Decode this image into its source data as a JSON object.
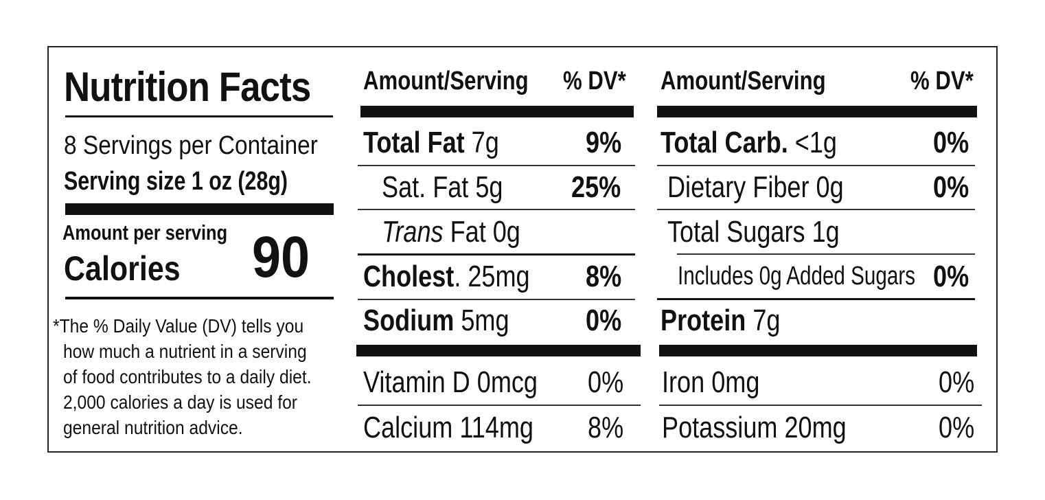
{
  "label": {
    "title": "Nutrition Facts",
    "servings_per_container": "8 Servings per Container",
    "serving_size": "Serving size 1 oz (28g)",
    "amount_per_serving": "Amount per serving",
    "calories_label": "Calories",
    "calories_value": "90",
    "footnote_lines": [
      "*The % Daily Value (DV) tells you",
      "how much a nutrient in a serving",
      "of food contributes to a daily diet.",
      "2,000 calories a day is used for",
      "general nutrition advice."
    ]
  },
  "col1": {
    "header_amount": "Amount/Serving",
    "header_dv": "% DV*",
    "total_fat": {
      "name": "Total Fat",
      "amount": "7g",
      "dv": "9%"
    },
    "sat_fat": {
      "name": "Sat. Fat 5g",
      "dv": "25%"
    },
    "trans_fat": {
      "name_italic": "Trans",
      "rest": "Fat 0g"
    },
    "cholesterol": {
      "name": "Cholest",
      "amount": ". 25mg",
      "dv": "8%"
    },
    "sodium": {
      "name": "Sodium",
      "amount": "5mg",
      "dv": "0%"
    },
    "vitamin_d": {
      "name": "Vitamin D 0mcg",
      "dv": "0%"
    },
    "calcium": {
      "name": "Calcium 114mg",
      "dv": "8%"
    }
  },
  "col2": {
    "header_amount": "Amount/Serving",
    "header_dv": "% DV*",
    "total_carb": {
      "name": "Total Carb.",
      "amount": "<1g",
      "dv": "0%"
    },
    "dietary_fiber": {
      "name": "Dietary Fiber 0g",
      "dv": "0%"
    },
    "total_sugars": {
      "name": "Total Sugars 1g"
    },
    "added_sugars": {
      "name": "Includes 0g Added Sugars",
      "dv": "0%"
    },
    "protein": {
      "name": "Protein",
      "amount": "7g"
    },
    "iron": {
      "name": "Iron 0mg",
      "dv": "0%"
    },
    "potassium": {
      "name": "Potassium 20mg",
      "dv": "0%"
    }
  }
}
